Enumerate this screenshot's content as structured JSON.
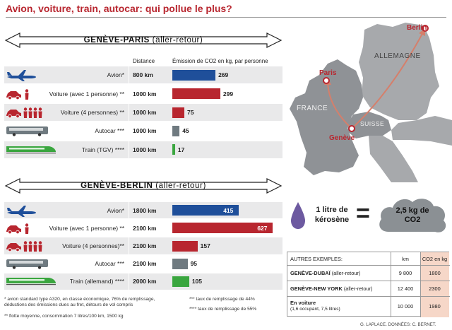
{
  "title": "Avion, voiture, train, autocar: qui pollue le plus?",
  "colors": {
    "plane": "#1f4f9a",
    "car": "#b8262f",
    "bus": "#6f7a80",
    "train": "#3aa63f",
    "accent": "#b8262f"
  },
  "sections": [
    {
      "route_bold": "GENÈVE-PARIS",
      "route_suffix": " (aller-retour)",
      "col_distance": "Distance",
      "col_emission": "Émission de CO2 en kg, par personne"
    },
    {
      "route_bold": "GENÈVE-BERLIN",
      "route_suffix": " (aller-retour)"
    }
  ],
  "chart_data": [
    {
      "type": "bar",
      "title": "GENÈVE-PARIS (aller-retour)",
      "ylabel": "Émission de CO2 en kg, par personne",
      "categories": [
        "Avion*",
        "Voiture (avec 1 personne) **",
        "Voiture (4 personnes) **",
        "Autocar ***",
        "Train (TGV) ****"
      ],
      "distances": [
        "800 km",
        "1000 km",
        "1000 km",
        "1000 km",
        "1000 km"
      ],
      "values": [
        269,
        299,
        75,
        45,
        17
      ],
      "value_labels": [
        "269",
        "299",
        "75",
        "45",
        "17"
      ],
      "icons": [
        "plane-icon",
        "car-1-person-icon",
        "car-4-persons-icon",
        "bus-icon",
        "train-icon"
      ]
    },
    {
      "type": "bar",
      "title": "GENÈVE-BERLIN (aller-retour)",
      "ylabel": "Émission de CO2 en kg, par personne",
      "categories": [
        "Avion*",
        "Voiture (avec 1 personne) **",
        "Voiture (4 personnes)**",
        "Autocar ***",
        "Train (allemand) ****"
      ],
      "distances": [
        "1800 km",
        "2100 km",
        "2100 km",
        "2100 km",
        "2000 km"
      ],
      "values": [
        415,
        627,
        157,
        95,
        105
      ],
      "value_labels": [
        "415",
        "627",
        "157",
        "95",
        "105"
      ],
      "icons": [
        "plane-icon",
        "car-1-person-icon",
        "car-4-persons-icon",
        "bus-icon",
        "train-icon"
      ]
    }
  ],
  "map": {
    "cities": [
      "Berlin",
      "Paris",
      "Genève"
    ],
    "countries": [
      "ALLEMAGNE",
      "FRANCE",
      "SUISSE"
    ]
  },
  "kerosene": {
    "label_line1": "1 litre de",
    "label_line2": "kérosène",
    "equals": "=",
    "result_line1": "2,5 kg de",
    "result_line2": "CO2"
  },
  "examples": {
    "header": "AUTRES EXEMPLES:",
    "col_km": "km",
    "col_co2": "CO2 en kg",
    "rows": [
      {
        "name_bold": "GENÈVE-DUBAÏ",
        "name_rest": " (aller-retour)",
        "km": "9 800",
        "co2": "1800"
      },
      {
        "name_bold": "GENÈVE-NEW YORK",
        "name_rest": " (aller-retour)",
        "km": "12 400",
        "co2": "2300"
      },
      {
        "name_bold": "En voiture",
        "name_rest": "",
        "sub": "(1,6 occupant, 7,5 litres)",
        "km": "10 000",
        "co2": "1980"
      }
    ]
  },
  "footnotes": {
    "f1_line1": "* avion standard type A320, en classe économique, 76% de remplissage,",
    "f1_line2": "déductions des émissions dues au fret, détours de vol compris",
    "f2": "** flotte moyenne, consommation 7 litres/100 km, 1500 kg",
    "f3": "*** taux de remplissage de 44%",
    "f4": "**** taux de remplissage de 55%"
  },
  "credit": "G. LAPLACE. DONNÉES: C. BERNET."
}
